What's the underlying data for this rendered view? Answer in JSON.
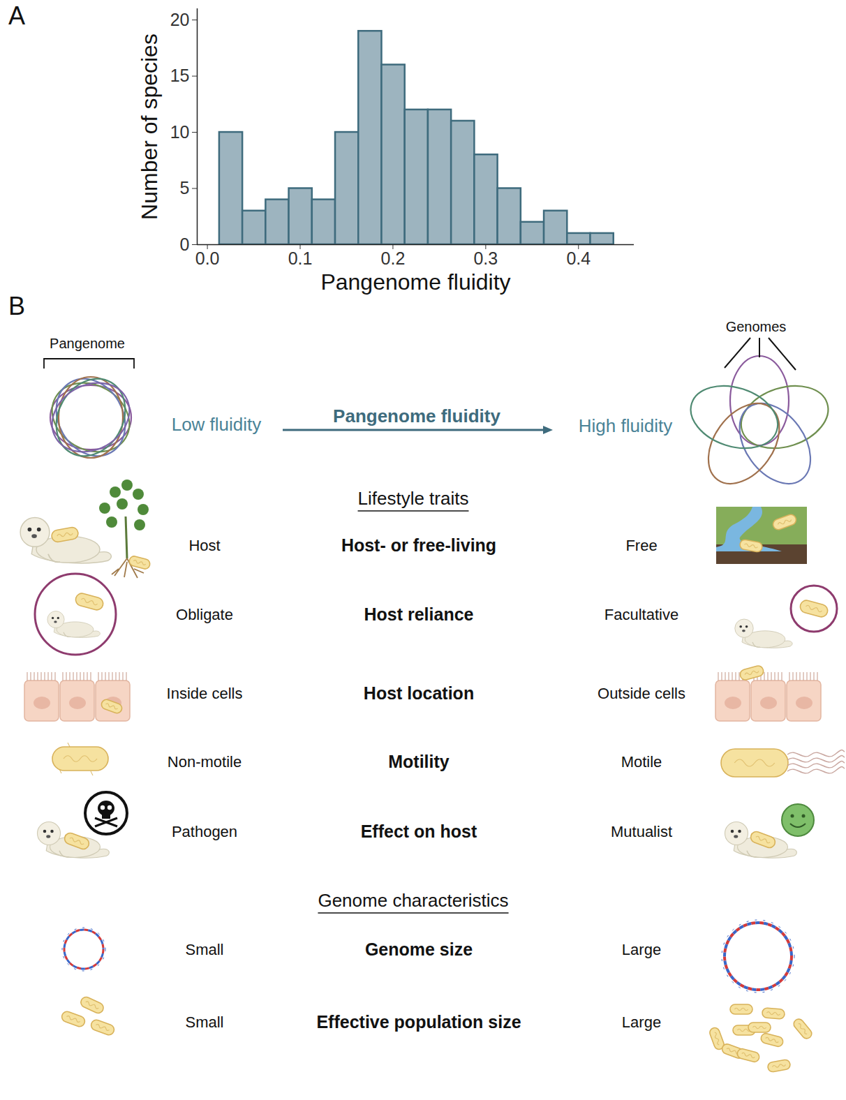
{
  "panel_labels": [
    "A",
    "B"
  ],
  "chart_data": {
    "type": "histogram",
    "x_label": "Pangenome fluidity",
    "y_label": "Number of species",
    "bins": [
      0.013,
      0.038,
      0.063,
      0.088,
      0.113,
      0.138,
      0.163,
      0.188,
      0.213,
      0.238,
      0.263,
      0.288,
      0.313,
      0.338,
      0.363,
      0.388,
      0.413,
      0.438
    ],
    "counts": [
      10,
      3,
      4,
      5,
      4,
      10,
      19,
      16,
      12,
      12,
      11,
      8,
      5,
      2,
      3,
      1,
      1
    ],
    "color": "#9db4bf",
    "xlim": [
      -0.011,
      0.46
    ],
    "xticks": [
      {
        "value": 0,
        "label": "0.0"
      },
      0.1,
      0.2,
      0.3,
      0.4
    ],
    "ylim": [
      0,
      21
    ],
    "yticks": [
      0,
      5,
      10,
      15,
      20
    ]
  },
  "diagram": {
    "pangenome_label": "Pangenome",
    "genomes_label": "Genomes",
    "low_label": "Low fluidity",
    "axis_label": "Pangenome fluidity",
    "high_label": "High fluidity",
    "sections": [
      {
        "title": "Lifestyle traits",
        "rows": [
          {
            "left": "Host",
            "trait": "Host- or free-living",
            "right": "Free"
          },
          {
            "left": "Obligate",
            "trait": "Host reliance",
            "right": "Facultative"
          },
          {
            "left": "Inside cells",
            "trait": "Host location",
            "right": "Outside cells"
          },
          {
            "left": "Non-motile",
            "trait": "Motility",
            "right": "Motile"
          },
          {
            "left": "Pathogen",
            "trait": "Effect on host",
            "right": "Mutualist"
          }
        ]
      },
      {
        "title": "Genome characteristics",
        "rows": [
          {
            "left": "Small",
            "trait": "Genome size",
            "right": "Large"
          },
          {
            "left": "Small",
            "trait": "Effective population size",
            "right": "Large"
          }
        ]
      }
    ]
  }
}
